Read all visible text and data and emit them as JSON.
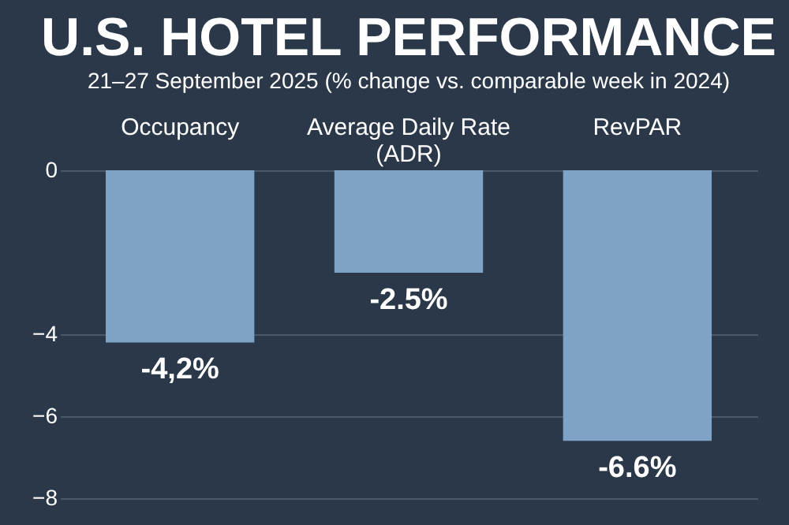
{
  "chart_data": {
    "type": "bar",
    "title": "U.S. HOTEL PERFORMANCE",
    "subtitle": "21–27 September 2025 (% change vs. comparable week in 2024)",
    "categories": [
      "Occupancy",
      "Average Daily Rate\n(ADR)",
      "RevPAR"
    ],
    "values": [
      -4.2,
      -2.5,
      -6.6
    ],
    "color": "#7ea3c6",
    "value_labels": [
      "-4,2%",
      "-2.5%",
      "-6.6%"
    ],
    "ylim": [
      -8,
      0
    ],
    "yticks": [
      0,
      -4,
      -6,
      -8
    ],
    "grid": "y"
  }
}
